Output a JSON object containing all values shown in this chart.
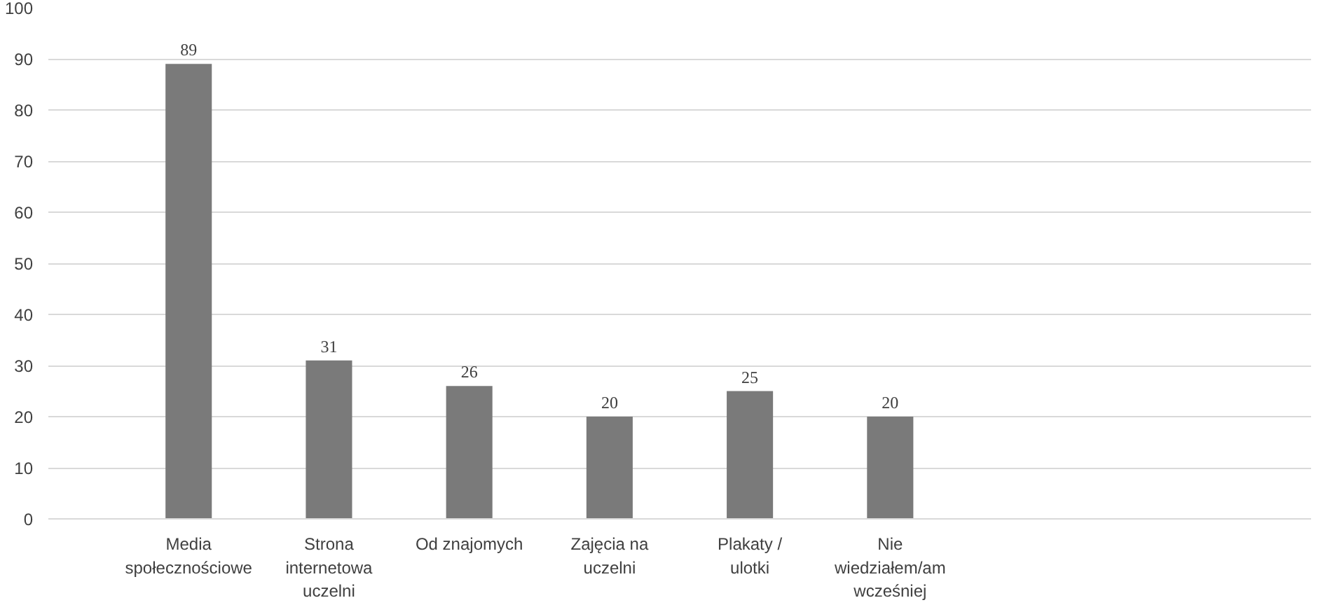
{
  "chart_data": {
    "type": "bar",
    "categories": [
      "Media społecznościowe",
      "Strona internetowa uczelni",
      "Od znajomych",
      "Zajęcia na uczelni",
      "Plakaty / ulotki",
      "Nie wiedziałem/am wcześniej"
    ],
    "values": [
      89,
      31,
      26,
      20,
      25,
      20
    ],
    "color": "#7a7a7a",
    "ylim": [
      0,
      100
    ],
    "yticks": [
      0,
      10,
      20,
      30,
      40,
      50,
      60,
      70,
      80,
      90,
      100
    ],
    "grid": "y",
    "data_labels": true
  }
}
